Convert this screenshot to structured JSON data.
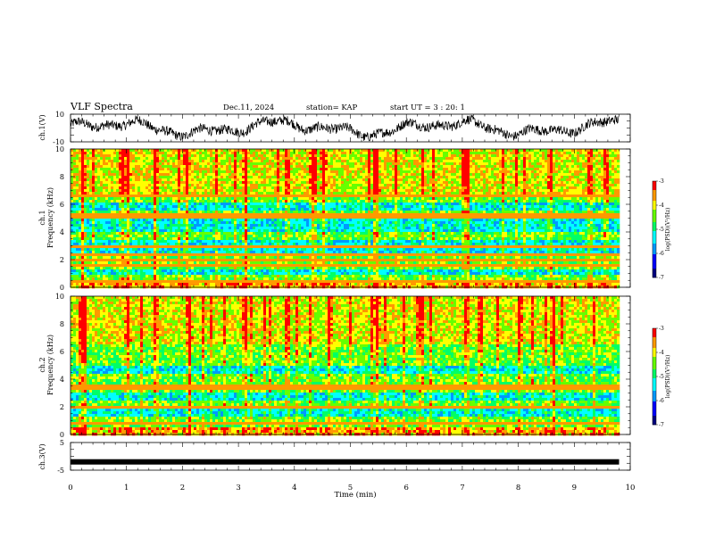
{
  "header": {
    "title": "VLF Spectra",
    "date": "Dec.11, 2024",
    "station": "station= KAP",
    "start": "start UT = 3 : 20: 1"
  },
  "chart_data": [
    {
      "type": "line",
      "name": "ch1-waveform",
      "ylabel": "ch.1(V)",
      "ylim": [
        -10,
        10
      ],
      "y_tick_labels": [
        "10",
        "-10"
      ],
      "xlim": [
        0,
        10
      ]
    },
    {
      "type": "heatmap",
      "name": "ch1-spectrogram",
      "ylabel": "ch.1\nFrequency (kHz)",
      "ylim": [
        0,
        10
      ],
      "y_tick_labels": [
        "0",
        "2",
        "4",
        "6",
        "8",
        "10"
      ],
      "xlim": [
        0,
        10
      ],
      "data_end_min": 9.8,
      "colorbar": {
        "label": "log(PSD)(V²/Hz)",
        "range": [
          -7,
          -3
        ],
        "tick_labels": [
          "-3",
          "-4",
          "-5",
          "-6",
          "-7"
        ]
      },
      "horizontal_lines_khz": [
        0.4,
        1.6,
        2.0,
        2.3,
        3.0,
        4.6,
        5.1,
        5.3,
        6.6
      ],
      "vertical_bursts_min": [
        0.2,
        0.9,
        1.0,
        1.5,
        2.05,
        3.1,
        3.85,
        4.3,
        4.5,
        5.45,
        7.05,
        8.55
      ]
    },
    {
      "type": "heatmap",
      "name": "ch2-spectrogram",
      "ylabel": "ch.2\nFrequency (kHz)",
      "ylim": [
        0,
        10
      ],
      "y_tick_labels": [
        "0",
        "2",
        "4",
        "6",
        "8",
        "10"
      ],
      "xlim": [
        0,
        10
      ],
      "data_end_min": 9.8,
      "colorbar": {
        "label": "log(PSD)(V²/Hz)",
        "range": [
          -7,
          -3
        ],
        "tick_labels": [
          "-3",
          "-4",
          "-5",
          "-6",
          "-7"
        ]
      },
      "horizontal_lines_khz": [
        0.3,
        0.8,
        2.0,
        3.3,
        3.5,
        6.3
      ],
      "vertical_bursts_min": [
        0.2,
        1.0,
        1.5,
        2.1,
        3.1,
        3.85,
        4.6,
        5.45,
        6.2,
        7.05,
        7.3,
        8.0,
        8.6
      ]
    },
    {
      "type": "line",
      "name": "ch3-waveform",
      "ylabel": "ch.3(V)",
      "ylim": [
        -5,
        5
      ],
      "y_tick_labels": [
        "5",
        "-5"
      ],
      "xlabel": "Time (min)",
      "xlim": [
        0,
        10
      ],
      "x_tick_labels": [
        "0",
        "1",
        "2",
        "3",
        "4",
        "5",
        "6",
        "7",
        "8",
        "9",
        "10"
      ],
      "constant_value": -2.0
    }
  ],
  "colors": {
    "colormap": [
      "#00007f",
      "#0000ff",
      "#0099ff",
      "#00ffff",
      "#00ff66",
      "#66ff00",
      "#ffff00",
      "#ff9900",
      "#ff0000",
      "#ffffff"
    ],
    "line": "#000000"
  }
}
